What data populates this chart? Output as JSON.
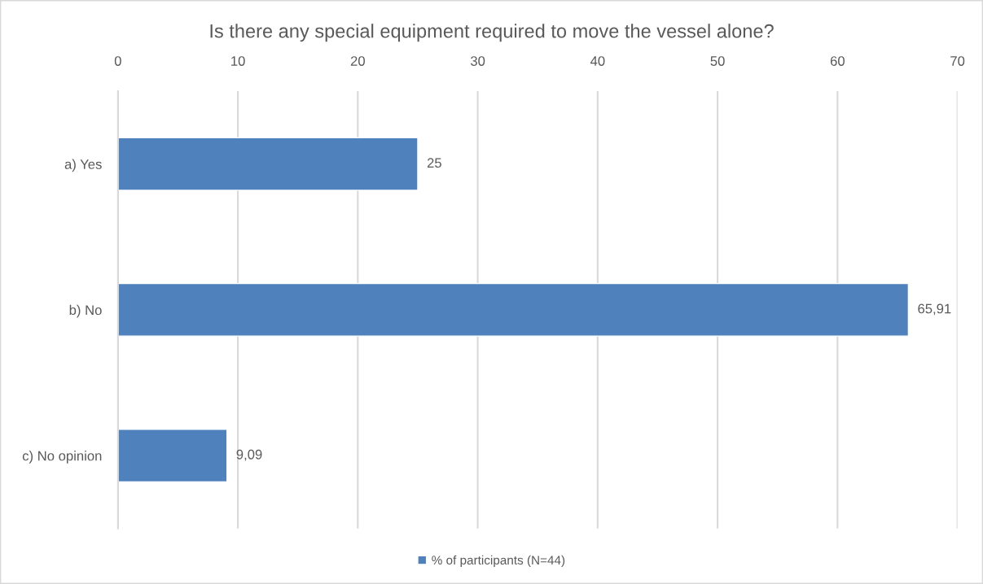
{
  "chart_data": {
    "type": "bar",
    "orientation": "horizontal",
    "title": "Is there any special equipment required to move the vessel alone?",
    "categories": [
      "a) Yes",
      "b) No",
      "c) No opinion"
    ],
    "series": [
      {
        "name": "% of participants (N=44)",
        "color": "#4f81bd",
        "values": [
          25,
          65.91,
          9.09
        ],
        "value_labels": [
          "25",
          "65,91",
          "9,09"
        ]
      }
    ],
    "xlim": [
      0,
      70
    ],
    "xticks": [
      0,
      10,
      20,
      30,
      40,
      50,
      60,
      70
    ],
    "grid": "x",
    "legend": "bottom"
  }
}
